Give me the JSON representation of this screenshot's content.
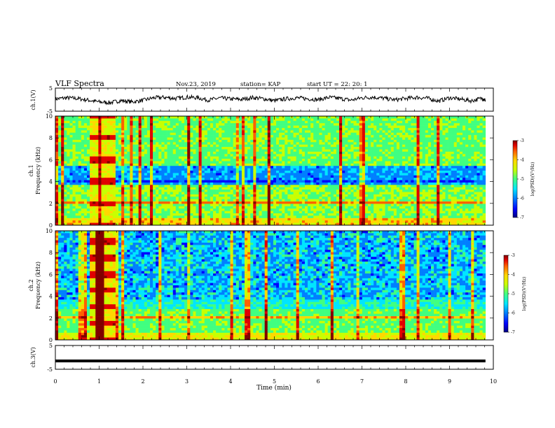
{
  "header": {
    "title": "VLF Spectra",
    "date": "Nov.23, 2019",
    "station": "station= KAP",
    "start": "start  UT  =   22: 20: 1"
  },
  "colors": {
    "trace": "#000000",
    "background": "#ffffff",
    "colormap": [
      "#00007f",
      "#0000ff",
      "#007fff",
      "#00e5ff",
      "#40ff80",
      "#c8ff00",
      "#ffd800",
      "#ff6000",
      "#e00000",
      "#800000"
    ]
  },
  "chart_data": [
    {
      "type": "line",
      "panel": "ch1-voltage",
      "ylabel": "ch.1(V)",
      "ylim": [
        -5,
        5
      ],
      "yticks": [
        -5,
        5
      ],
      "xlim": [
        0,
        10
      ],
      "series": [
        {
          "x": [
            0,
            0.25,
            0.5,
            0.75,
            1.0,
            1.25,
            1.5,
            1.75,
            2.0,
            2.25,
            2.5,
            2.75,
            3.0,
            3.25,
            3.5,
            3.75,
            4.0,
            4.25,
            4.5,
            4.75,
            5.0,
            5.25,
            5.5,
            5.75,
            6.0,
            6.25,
            6.5,
            6.75,
            7.0,
            7.25,
            7.5,
            7.75,
            8.0,
            8.25,
            8.5,
            8.75,
            9.0,
            9.25,
            9.5,
            9.75,
            9.82
          ],
          "y": [
            0.3,
            0.8,
            0.5,
            -0.2,
            -1.0,
            -1.3,
            -0.4,
            -1.0,
            -0.3,
            0.8,
            1.0,
            0.5,
            1.1,
            0.8,
            -0.2,
            0.7,
            0.3,
            0.1,
            0.9,
            0.4,
            -0.5,
            0.3,
            0.8,
            0.4,
            0.0,
            1.0,
            0.5,
            -0.2,
            0.8,
            1.1,
            0.6,
            -0.1,
            0.5,
            1.0,
            0.6,
            -0.6,
            0.8,
            0.2,
            -0.5,
            0.6,
            -0.3
          ]
        }
      ]
    },
    {
      "type": "heatmap",
      "panel": "ch1-spectrogram",
      "ylabel": "ch.1",
      "ylabel2": "Frequency (kHz)",
      "ylim": [
        0,
        10
      ],
      "yticks": [
        0,
        2,
        4,
        6,
        8,
        10
      ],
      "xlim": [
        0,
        10
      ],
      "colorbar": {
        "label": "log(PSD)(V²/Hz)",
        "range": [
          -7,
          -3
        ],
        "ticks": [
          -3,
          -4,
          -5,
          -6,
          -7
        ]
      }
    },
    {
      "type": "heatmap",
      "panel": "ch2-spectrogram",
      "ylabel": "ch.2",
      "ylabel2": "Frequency (kHz)",
      "ylim": [
        0,
        10
      ],
      "yticks": [
        0,
        2,
        4,
        6,
        8,
        10
      ],
      "xlim": [
        0,
        10
      ],
      "colorbar": {
        "label": "log(PSD)(V²/Hz)",
        "range": [
          -7,
          -3
        ],
        "ticks": [
          -3,
          -4,
          -5,
          -6,
          -7
        ]
      }
    },
    {
      "type": "line",
      "panel": "ch3-voltage",
      "ylabel": "ch.3(V)",
      "ylim": [
        -5,
        5
      ],
      "yticks": [
        -5,
        5
      ],
      "xlim": [
        0,
        10
      ],
      "series": [
        {
          "x": [
            0,
            9.82
          ],
          "y": [
            -1.5,
            -1.5
          ]
        }
      ]
    }
  ],
  "xaxis": {
    "label": "Time  (min)",
    "ticks": [
      0,
      1,
      2,
      3,
      4,
      5,
      6,
      7,
      8,
      9,
      10
    ]
  }
}
